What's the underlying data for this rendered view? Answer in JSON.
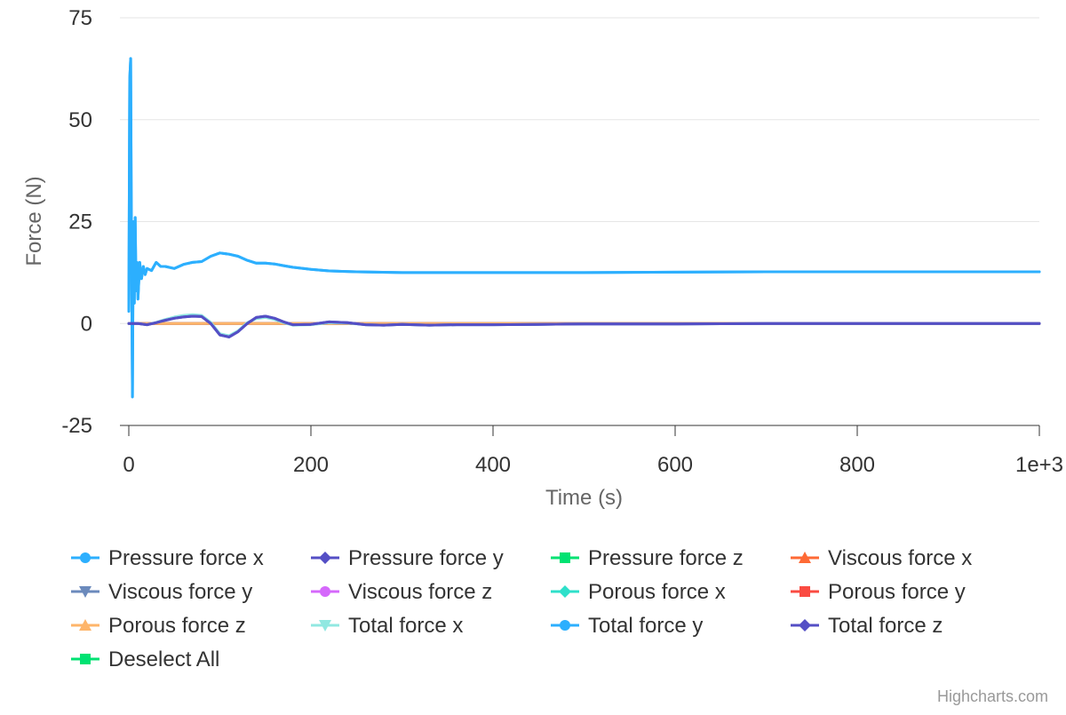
{
  "chart_data": {
    "type": "line",
    "xlabel": "Time (s)",
    "ylabel": "Force (N)",
    "xlim": [
      0,
      1000
    ],
    "ylim": [
      -25,
      75
    ],
    "x_ticks": [
      0,
      200,
      400,
      600,
      800,
      1000
    ],
    "x_tick_labels": [
      "0",
      "200",
      "400",
      "600",
      "800",
      "1e+3"
    ],
    "y_ticks": [
      -25,
      0,
      25,
      50,
      75
    ],
    "y_tick_labels": [
      "-25",
      "0",
      "25",
      "50",
      "75"
    ],
    "grid": true,
    "legend_position": "bottom",
    "series": [
      {
        "name": "Pressure force x",
        "color": "#2caffe",
        "marker": "circle",
        "x": [
          0,
          1,
          2,
          3,
          4,
          5,
          6,
          7,
          8,
          9,
          10,
          12,
          14,
          16,
          18,
          20,
          25,
          30,
          35,
          40,
          50,
          60,
          70,
          80,
          90,
          100,
          110,
          120,
          130,
          140,
          150,
          160,
          170,
          180,
          200,
          220,
          250,
          300,
          350,
          400,
          500,
          600,
          700,
          800,
          900,
          1000
        ],
        "y": [
          3,
          60,
          65,
          15,
          -18,
          25,
          5,
          26,
          8,
          15,
          6,
          15,
          11,
          14,
          12,
          13.5,
          13,
          15,
          14,
          14,
          13.5,
          14.5,
          15,
          15.2,
          16.5,
          17.3,
          17,
          16.5,
          15.5,
          14.8,
          14.8,
          14.6,
          14.2,
          13.8,
          13.3,
          12.9,
          12.7,
          12.5,
          12.5,
          12.5,
          12.5,
          12.6,
          12.7,
          12.7,
          12.7,
          12.7
        ]
      },
      {
        "name": "Pressure force y",
        "color": "#544fc5",
        "marker": "diamond",
        "x": [
          0,
          10,
          20,
          30,
          40,
          50,
          60,
          70,
          80,
          90,
          100,
          110,
          120,
          130,
          140,
          150,
          160,
          170,
          180,
          200,
          220,
          240,
          260,
          280,
          300,
          330,
          360,
          400,
          450,
          500,
          600,
          700,
          800,
          900,
          1000
        ],
        "y": [
          0,
          0,
          -0.3,
          0.2,
          0.8,
          1.3,
          1.6,
          1.8,
          1.7,
          0,
          -2.8,
          -3.3,
          -2,
          0,
          1.5,
          1.8,
          1.3,
          0.4,
          -0.3,
          -0.2,
          0.4,
          0.2,
          -0.3,
          -0.4,
          -0.2,
          -0.4,
          -0.3,
          -0.3,
          -0.2,
          -0.1,
          -0.1,
          0,
          0,
          0,
          0
        ]
      },
      {
        "name": "Pressure force z",
        "color": "#00e272",
        "marker": "square",
        "x": [
          0,
          1000
        ],
        "y": [
          0,
          0
        ]
      },
      {
        "name": "Viscous force x",
        "color": "#fe6a35",
        "marker": "triangle",
        "x": [
          0,
          1000
        ],
        "y": [
          0,
          0
        ]
      },
      {
        "name": "Viscous force y",
        "color": "#6b8abc",
        "marker": "triangle-down",
        "x": [
          0,
          1000
        ],
        "y": [
          0,
          0
        ]
      },
      {
        "name": "Viscous force z",
        "color": "#d568fb",
        "marker": "circle",
        "x": [
          0,
          1000
        ],
        "y": [
          0,
          0
        ]
      },
      {
        "name": "Porous force x",
        "color": "#2ee0ca",
        "marker": "diamond",
        "x": [
          0,
          1000
        ],
        "y": [
          0,
          0
        ]
      },
      {
        "name": "Porous force y",
        "color": "#fa4b42",
        "marker": "square",
        "x": [
          0,
          1000
        ],
        "y": [
          0,
          0
        ]
      },
      {
        "name": "Porous force z",
        "color": "#feb56a",
        "marker": "triangle",
        "x": [
          0,
          1000
        ],
        "y": [
          0,
          0
        ]
      },
      {
        "name": "Total force x",
        "color": "#91e8e1",
        "marker": "triangle-down",
        "x": [
          0,
          10,
          20,
          30,
          40,
          50,
          60,
          70,
          80,
          90,
          100,
          110,
          120,
          130,
          140,
          150,
          160,
          170,
          180,
          200,
          220,
          240,
          260,
          280,
          300,
          330,
          360,
          400,
          450,
          500,
          600,
          700,
          800,
          900,
          1000
        ],
        "y": [
          0,
          0,
          -0.3,
          0.3,
          1,
          1.6,
          2,
          2.2,
          2,
          0.3,
          -2.5,
          -3,
          -1.8,
          0.2,
          1.2,
          1.5,
          1,
          0.2,
          -0.4,
          -0.3,
          0.2,
          0.1,
          -0.3,
          -0.4,
          -0.2,
          -0.4,
          -0.3,
          -0.3,
          -0.2,
          -0.1,
          -0.1,
          0,
          0,
          0,
          0
        ]
      },
      {
        "name": "Total force y",
        "color": "#2caffe",
        "marker": "circle",
        "x": [
          0,
          1,
          2,
          3,
          4,
          5,
          6,
          7,
          8,
          9,
          10,
          12,
          14,
          16,
          18,
          20,
          25,
          30,
          35,
          40,
          50,
          60,
          70,
          80,
          90,
          100,
          110,
          120,
          130,
          140,
          150,
          160,
          170,
          180,
          200,
          220,
          250,
          300,
          350,
          400,
          500,
          600,
          700,
          800,
          900,
          1000
        ],
        "y": [
          3,
          60,
          65,
          15,
          -18,
          25,
          5,
          26,
          8,
          15,
          6,
          15,
          11,
          14,
          12,
          13.5,
          13,
          15,
          14,
          14,
          13.5,
          14.5,
          15,
          15.2,
          16.5,
          17.3,
          17,
          16.5,
          15.5,
          14.8,
          14.8,
          14.6,
          14.2,
          13.8,
          13.3,
          12.9,
          12.7,
          12.5,
          12.5,
          12.5,
          12.5,
          12.6,
          12.7,
          12.7,
          12.7,
          12.7
        ]
      },
      {
        "name": "Total force z",
        "color": "#544fc5",
        "marker": "diamond",
        "x": [
          0,
          10,
          20,
          30,
          40,
          50,
          60,
          70,
          80,
          90,
          100,
          110,
          120,
          130,
          140,
          150,
          160,
          170,
          180,
          200,
          220,
          240,
          260,
          280,
          300,
          330,
          360,
          400,
          450,
          500,
          600,
          700,
          800,
          900,
          1000
        ],
        "y": [
          0,
          0,
          -0.3,
          0.2,
          0.8,
          1.3,
          1.6,
          1.8,
          1.7,
          0,
          -2.8,
          -3.3,
          -2,
          0,
          1.5,
          1.8,
          1.3,
          0.4,
          -0.3,
          -0.2,
          0.4,
          0.2,
          -0.3,
          -0.4,
          -0.2,
          -0.4,
          -0.3,
          -0.3,
          -0.2,
          -0.1,
          -0.1,
          0,
          0,
          0,
          0
        ]
      }
    ],
    "draw_order": [
      2,
      3,
      4,
      5,
      6,
      7,
      8,
      9,
      0,
      10,
      1,
      11
    ],
    "legend_extra": {
      "name": "Deselect All",
      "color": "#00e272",
      "marker": "square"
    }
  },
  "credits": "Highcharts.com"
}
